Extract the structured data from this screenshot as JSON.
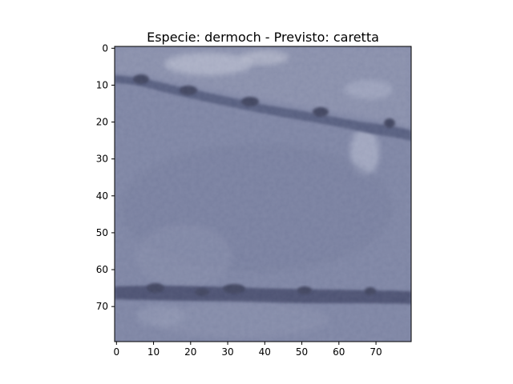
{
  "figure": {
    "title": "Especie: dermoch - Previsto: caretta",
    "image_description_icon": "skin-texture-image"
  },
  "chart_data": {
    "type": "image",
    "title": "Especie: dermoch - Previsto: caretta",
    "xlabel": "",
    "ylabel": "",
    "xlim": [
      -0.5,
      79.5
    ],
    "ylim": [
      79.5,
      -0.5
    ],
    "xticks": [
      0,
      10,
      20,
      30,
      40,
      50,
      60,
      70
    ],
    "yticks": [
      0,
      10,
      20,
      30,
      40,
      50,
      60,
      70
    ],
    "xtick_labels": [
      "0",
      "10",
      "20",
      "30",
      "40",
      "50",
      "60",
      "70"
    ],
    "ytick_labels": [
      "0",
      "10",
      "20",
      "30",
      "40",
      "50",
      "60",
      "70"
    ],
    "grid": false,
    "colors": {
      "base": "#7d84a3",
      "dark": "#4c5274",
      "shadow": "#2d314b",
      "light": "#b4b9cf",
      "highlight": "#d6d8e2"
    }
  }
}
